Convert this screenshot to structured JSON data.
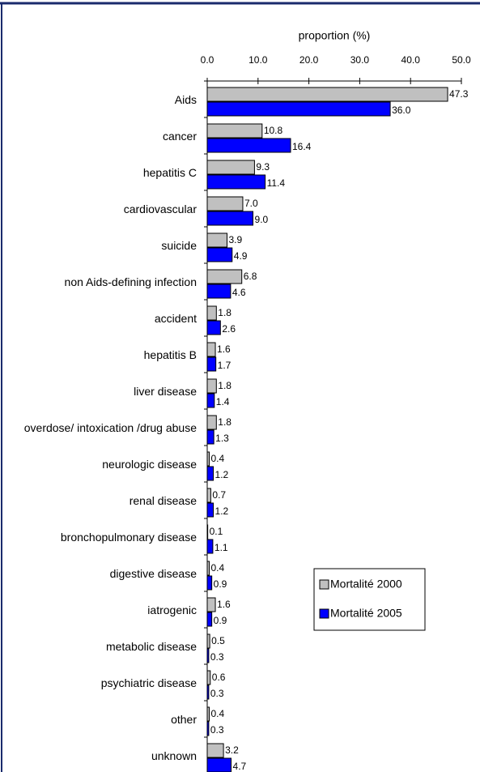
{
  "chart_data": {
    "type": "hbar",
    "xlabel": "proportion (%)",
    "categories": [
      "Aids",
      "cancer",
      "hepatitis C",
      "cardiovascular",
      "suicide",
      "non Aids-defining infection",
      "accident",
      "hepatitis B",
      "liver disease",
      "overdose/ intoxication /drug abuse",
      "neurologic disease",
      "renal disease",
      "bronchopulmonary disease",
      "digestive disease",
      "iatrogenic",
      "metabolic disease",
      "psychiatric disease",
      "other",
      "unknown"
    ],
    "series": [
      {
        "name": "Mortalité 2000",
        "color": "#c0c0c0",
        "values": [
          47.3,
          10.8,
          9.3,
          7.0,
          3.9,
          6.8,
          1.8,
          1.6,
          1.8,
          1.8,
          0.4,
          0.7,
          0.1,
          0.4,
          1.6,
          0.5,
          0.6,
          0.4,
          3.2
        ],
        "value_labels": [
          "47.3",
          "10.8",
          "9.3",
          "7.0",
          "3.9",
          "6.8",
          "1.8",
          "1.6",
          "1.8",
          "1.8",
          "0.4",
          "0.7",
          "0.1",
          "0.4",
          "1.6",
          "0.5",
          "0.6",
          "0.4",
          "3.2"
        ]
      },
      {
        "name": "Mortalité 2005",
        "color": "#0000ff",
        "values": [
          36.0,
          16.4,
          11.4,
          9.0,
          4.9,
          4.6,
          2.6,
          1.7,
          1.4,
          1.3,
          1.2,
          1.2,
          1.1,
          0.9,
          0.9,
          0.3,
          0.3,
          0.3,
          4.7
        ],
        "value_labels": [
          "36.0",
          "16.4",
          "11.4",
          "9.0",
          "4.9",
          "4.6",
          "2.6",
          "1.7",
          "1.4",
          "1.3",
          "1.2",
          "1.2",
          "1.1",
          "0.9",
          "0.9",
          "0.3",
          "0.3",
          "0.3",
          "4.7"
        ]
      }
    ],
    "xlim": [
      0,
      50
    ],
    "xticks": [
      {
        "value": 0,
        "label": "0.0"
      },
      {
        "value": 10,
        "label": "10.0"
      },
      {
        "value": 20,
        "label": "20.0"
      },
      {
        "value": 30,
        "label": "30.0"
      },
      {
        "value": 40,
        "label": "40.0"
      },
      {
        "value": 50,
        "label": "50.0"
      }
    ]
  }
}
